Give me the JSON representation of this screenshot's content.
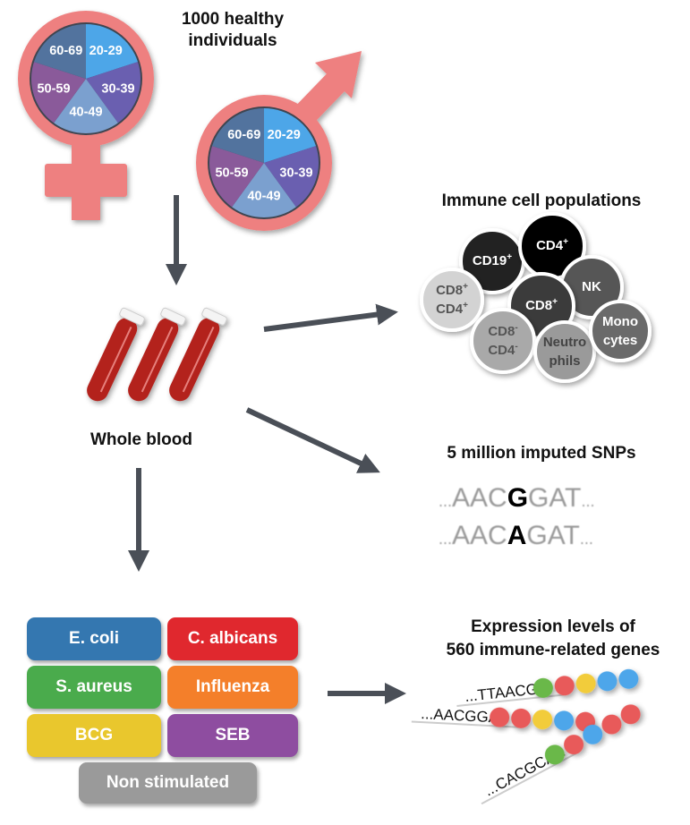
{
  "colors": {
    "ring": "#ee8080",
    "arrow": "#4a4f57",
    "slices": [
      "#4da6e8",
      "#6a5fb0",
      "#7ba0cf",
      "#8a5a9a",
      "#52739e"
    ]
  },
  "cohort": {
    "title_line1": "1000 healthy",
    "title_line2": "individuals",
    "age_groups": [
      "20-29",
      "30-39",
      "40-49",
      "50-59",
      "60-69"
    ]
  },
  "blood": {
    "label": "Whole blood"
  },
  "cells": {
    "title": "Immune cell populations",
    "items": [
      {
        "line1": "CD19",
        "sup1": "+",
        "fill": "#222222",
        "text": "#ffffff"
      },
      {
        "line1": "CD4",
        "sup1": "+",
        "fill": "#000000",
        "text": "#ffffff"
      },
      {
        "line1": "NK",
        "fill": "#575757",
        "text": "#ffffff"
      },
      {
        "line1": "CD8",
        "sup1": "+",
        "line2": "CD4",
        "sup2": "+",
        "fill": "#d3d3d3",
        "text": "#555555"
      },
      {
        "line1": "CD8",
        "sup1": "+",
        "fill": "#3a3a3a",
        "text": "#ffffff"
      },
      {
        "line1": "CD8",
        "sup1": "-",
        "line2": "CD4",
        "sup2": "-",
        "fill": "#a9a9a9",
        "text": "#555555"
      },
      {
        "line1": "Neutro",
        "line2": "phils",
        "fill": "#9a9a9a",
        "text": "#444444"
      },
      {
        "line1": "Mono",
        "line2": "cytes",
        "fill": "#6b6b6b",
        "text": "#ffffff"
      }
    ]
  },
  "snps": {
    "title": "5 million imputed SNPs",
    "row1": {
      "pre": "...",
      "a": "AAC",
      "b": "G",
      "c": "GAT",
      "post": "..."
    },
    "row2": {
      "pre": "...",
      "a": "AAC",
      "b": "A",
      "c": "GAT",
      "post": "..."
    }
  },
  "stimuli": [
    {
      "label": "E. coli",
      "color": "#3477b0"
    },
    {
      "label": "C. albicans",
      "color": "#e0282e"
    },
    {
      "label": "S. aureus",
      "color": "#4aab4c"
    },
    {
      "label": "Influenza",
      "color": "#f47f2a"
    },
    {
      "label": "BCG",
      "color": "#e9c72d"
    },
    {
      "label": "SEB",
      "color": "#8e4da0"
    },
    {
      "label": "Non stimulated",
      "color": "#9a9a9a"
    }
  ],
  "expression": {
    "title_line1": "Expression levels of",
    "title_line2": "560 immune-related genes",
    "sequences": [
      {
        "text": "...TTAACGG",
        "beads": [
          "#6ab84a",
          "#e85a5a",
          "#f2cc3a",
          "#4ea6ea",
          "#4ea6ea"
        ]
      },
      {
        "text": "...AACGGAT",
        "beads": [
          "#e85a5a",
          "#e85a5a",
          "#f2cc3a",
          "#4ea6ea",
          "#e85a5a"
        ]
      },
      {
        "text": "...CACGCAA",
        "beads": [
          "#6ab84a",
          "#e85a5a",
          "#4ea6ea",
          "#e85a5a",
          "#e85a5a"
        ]
      }
    ]
  }
}
